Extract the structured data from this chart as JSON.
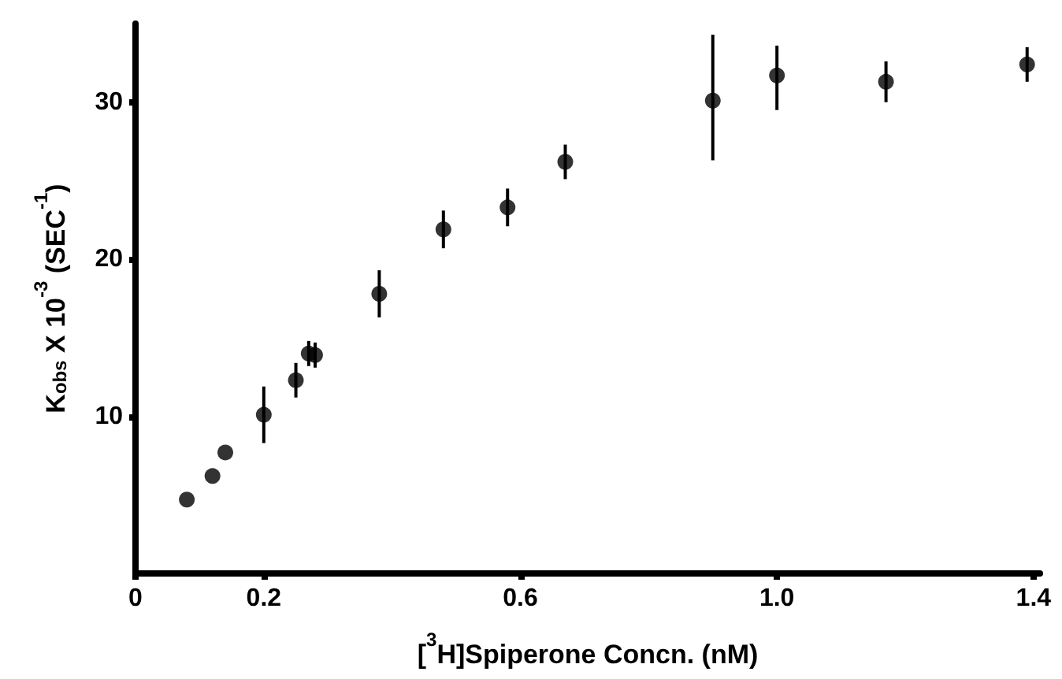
{
  "chart_data": {
    "type": "scatter",
    "xlabel": "[$^{3}$H]Spiperone Concn. (nM)",
    "ylabel": "K$_{obs}$ X 10$^{-3}$ (SEC$^{-1}$)",
    "x": [
      0.08,
      0.12,
      0.14,
      0.2,
      0.25,
      0.27,
      0.28,
      0.38,
      0.48,
      0.58,
      0.67,
      0.9,
      1.0,
      1.17,
      1.39
    ],
    "values": [
      4.7,
      6.2,
      7.7,
      10.1,
      12.3,
      14.0,
      13.9,
      17.8,
      21.9,
      23.3,
      26.2,
      30.1,
      31.7,
      31.3,
      32.4
    ],
    "errors": [
      null,
      null,
      null,
      1.8,
      1.1,
      0.8,
      0.8,
      1.5,
      1.2,
      1.2,
      1.1,
      [
        26.3,
        34.3
      ],
      [
        29.5,
        33.6
      ],
      1.3,
      1.1
    ],
    "color": "#000000",
    "marker": "circle",
    "xlim": [
      0,
      1.41
    ],
    "ylim": [
      0,
      35
    ],
    "xticks": [
      0,
      0.2,
      0.6,
      {
        "value": 1,
        "label": "1.0"
      },
      1.4
    ],
    "yticks": [
      10,
      20,
      30
    ],
    "grid": false
  }
}
